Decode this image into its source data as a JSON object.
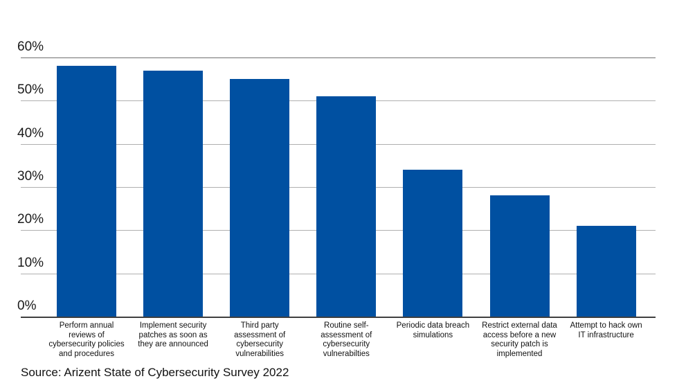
{
  "chart_data": {
    "type": "bar",
    "title": "",
    "xlabel": "",
    "ylabel": "",
    "categories": [
      "Perform annual\nreviews of\ncybersecurity policies\nand procedures",
      "Implement security\npatches as soon as\nthey are announced",
      "Third party\nassessment of\ncybersecurity\nvulnerabilities",
      "Routine self-\nassessment of\ncybersecurity\nvulnerabilties",
      "Periodic data breach\nsimulations",
      "Restrict external data\naccess before a new\nsecurity patch is\nimplemented",
      "Attempt to hack own\nIT infrastructure"
    ],
    "values": [
      58,
      57,
      55,
      51,
      34,
      28,
      21
    ],
    "value_unit": "%",
    "ylim": [
      0,
      60
    ],
    "ytick_values": [
      0,
      10,
      20,
      30,
      40,
      50,
      60
    ],
    "ytick_labels": [
      "0%",
      "10%",
      "20%",
      "30%",
      "40%",
      "50%",
      "60%"
    ],
    "grid": true,
    "legend": false,
    "bar_color": "#0050A1",
    "gridline_color": "#AFAFAF",
    "top_gridline_color": "#6F6F6F",
    "axis_line_color": "#3F3F3F",
    "text_color": "#1a1a1a"
  },
  "source": {
    "text": "Source: Arizent State of Cybersecurity Survey 2022"
  }
}
